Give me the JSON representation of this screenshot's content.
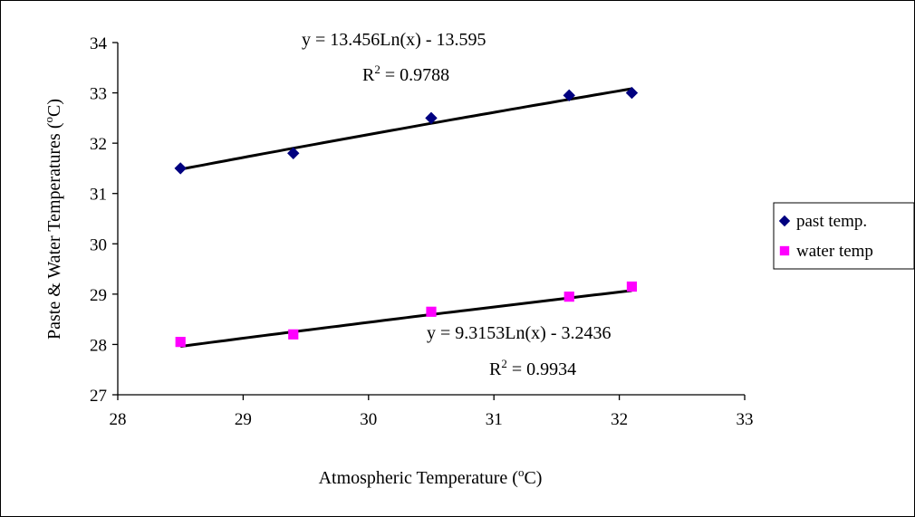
{
  "chart_data": {
    "type": "scatter",
    "xlabel": {
      "text": "Atmospheric Temperature (",
      "sup": "o",
      "tail": "C)"
    },
    "ylabel": {
      "text": "Paste & Water Temperatures (",
      "sup": "o",
      "tail": "C)"
    },
    "xlim": [
      28,
      33
    ],
    "ylim": [
      27,
      34
    ],
    "xticks": [
      "28",
      "29",
      "30",
      "31",
      "32",
      "33"
    ],
    "yticks": [
      "27",
      "28",
      "29",
      "30",
      "31",
      "32",
      "33",
      "34"
    ],
    "grid": false,
    "legend_position": "right",
    "series": [
      {
        "name": "past temp.",
        "marker": "diamond",
        "color": "#000080",
        "x": [
          28.5,
          29.4,
          30.5,
          31.6,
          32.1
        ],
        "y": [
          31.5,
          31.8,
          32.5,
          32.95,
          33.0
        ],
        "trendline": {
          "type": "log",
          "a": 13.456,
          "b": -13.595
        },
        "equation": "y = 13.456Ln(x) - 13.595",
        "r2_prefix": "R",
        "r2_sup": "2",
        "r2_value": " = 0.9788"
      },
      {
        "name": "water temp",
        "marker": "square",
        "color": "#ff00ff",
        "x": [
          28.5,
          29.4,
          30.5,
          31.6,
          32.1
        ],
        "y": [
          28.05,
          28.2,
          28.65,
          28.95,
          29.15
        ],
        "trendline": {
          "type": "log",
          "a": 9.3153,
          "b": -3.2436
        },
        "equation": "y = 9.3153Ln(x) - 3.2436",
        "r2_prefix": "R",
        "r2_sup": "2",
        "r2_value": " = 0.9934"
      }
    ]
  }
}
